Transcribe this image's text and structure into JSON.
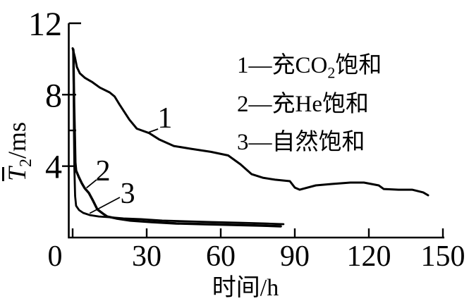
{
  "figure": {
    "background": "#ffffff",
    "ink": "#000000"
  },
  "axis": {
    "y_label": {
      "symbol": "T",
      "overline": true,
      "sub": "2",
      "unit": "/ms"
    },
    "x_label": "时间/h"
  },
  "chart_data": {
    "type": "line",
    "title": "",
    "xlabel": "时间/h",
    "ylabel": "T̄2/ms",
    "xlim": [
      0,
      150
    ],
    "ylim": [
      0,
      12
    ],
    "xticks": [
      0,
      30,
      60,
      90,
      120,
      150
    ],
    "xtick_labels": [
      "0",
      "30",
      "60",
      "90",
      "120",
      "150"
    ],
    "yticks_major": [
      4,
      8,
      12
    ],
    "ytick_labels": [
      "4",
      "8",
      "12"
    ],
    "yticks_minor": [
      6
    ],
    "grid": false,
    "legend_position": "upper right",
    "line_color": "#000000",
    "series": [
      {
        "name": "充CO2饱和",
        "marker": "1",
        "points": [
          [
            0,
            10.6
          ],
          [
            0.9,
            10.1
          ],
          [
            1.7,
            9.55
          ],
          [
            2.9,
            9.2
          ],
          [
            4.9,
            8.95
          ],
          [
            8,
            8.7
          ],
          [
            11,
            8.4
          ],
          [
            15,
            8.13
          ],
          [
            17,
            7.9
          ],
          [
            19,
            7.45
          ],
          [
            23,
            6.6
          ],
          [
            26,
            6.1
          ],
          [
            31,
            5.85
          ],
          [
            35,
            5.5
          ],
          [
            41,
            5.13
          ],
          [
            48,
            4.97
          ],
          [
            56,
            4.8
          ],
          [
            63,
            4.6
          ],
          [
            68,
            4.1
          ],
          [
            72.5,
            3.55
          ],
          [
            77,
            3.35
          ],
          [
            82,
            3.24
          ],
          [
            88,
            3.16
          ],
          [
            90,
            2.8
          ],
          [
            92,
            2.68
          ],
          [
            98.5,
            2.92
          ],
          [
            105,
            3.0
          ],
          [
            112.5,
            3.08
          ],
          [
            118,
            3.08
          ],
          [
            124,
            2.92
          ],
          [
            126,
            2.72
          ],
          [
            132,
            2.68
          ],
          [
            137.5,
            2.68
          ],
          [
            142,
            2.53
          ],
          [
            144,
            2.37
          ]
        ]
      },
      {
        "name": "充He饱和",
        "marker": "2",
        "points": [
          [
            0.3,
            10.5
          ],
          [
            0.6,
            7.4
          ],
          [
            0.9,
            5.4
          ],
          [
            1.1,
            4.2
          ],
          [
            1.4,
            3.75
          ],
          [
            2.6,
            3.36
          ],
          [
            3.7,
            3.04
          ],
          [
            4.9,
            2.76
          ],
          [
            6.6,
            2.49
          ],
          [
            8.3,
            2.05
          ],
          [
            10,
            1.58
          ],
          [
            12.3,
            1.34
          ],
          [
            14,
            1.18
          ],
          [
            17.7,
            1.07
          ],
          [
            23.4,
            0.95
          ],
          [
            32,
            0.87
          ],
          [
            42,
            0.79
          ],
          [
            53.4,
            0.75
          ],
          [
            65,
            0.71
          ],
          [
            76.3,
            0.67
          ],
          [
            84.3,
            0.63
          ]
        ]
      },
      {
        "name": "自然饱和",
        "marker": "3",
        "points": [
          [
            0.3,
            10.55
          ],
          [
            0.5,
            6.2
          ],
          [
            0.7,
            3.83
          ],
          [
            1,
            2.33
          ],
          [
            1.4,
            1.78
          ],
          [
            2.6,
            1.54
          ],
          [
            4.3,
            1.38
          ],
          [
            6.9,
            1.26
          ],
          [
            10.6,
            1.18
          ],
          [
            14.9,
            1.14
          ],
          [
            20.6,
            1.07
          ],
          [
            27.7,
            1.03
          ],
          [
            36.3,
            0.95
          ],
          [
            45.4,
            0.91
          ],
          [
            56.3,
            0.87
          ],
          [
            67.7,
            0.83
          ],
          [
            77.7,
            0.79
          ],
          [
            85.4,
            0.75
          ]
        ]
      }
    ],
    "annotations": [
      {
        "text": "1",
        "t": 37.4,
        "v": 6.75,
        "leader": [
          [
            34.6,
            6.08
          ],
          [
            30.9,
            5.9
          ]
        ]
      },
      {
        "text": "2",
        "t": 12.3,
        "v": 3.79,
        "leader": [
          [
            9.7,
            3.24
          ],
          [
            5.6,
            2.78
          ]
        ]
      },
      {
        "text": "3",
        "t": 22.3,
        "v": 2.53,
        "leader": [
          [
            19.1,
            2.25
          ],
          [
            6.9,
            1.36
          ]
        ]
      }
    ],
    "legend_items": [
      {
        "num": "1",
        "sep": "—",
        "pre": "充CO",
        "sub": "2",
        "post": "饱和"
      },
      {
        "num": "2",
        "sep": "—",
        "pre": "充He",
        "sub": "",
        "post": "饱和"
      },
      {
        "num": "3",
        "sep": "—",
        "pre": "自然",
        "sub": "",
        "post": "饱和"
      }
    ]
  }
}
